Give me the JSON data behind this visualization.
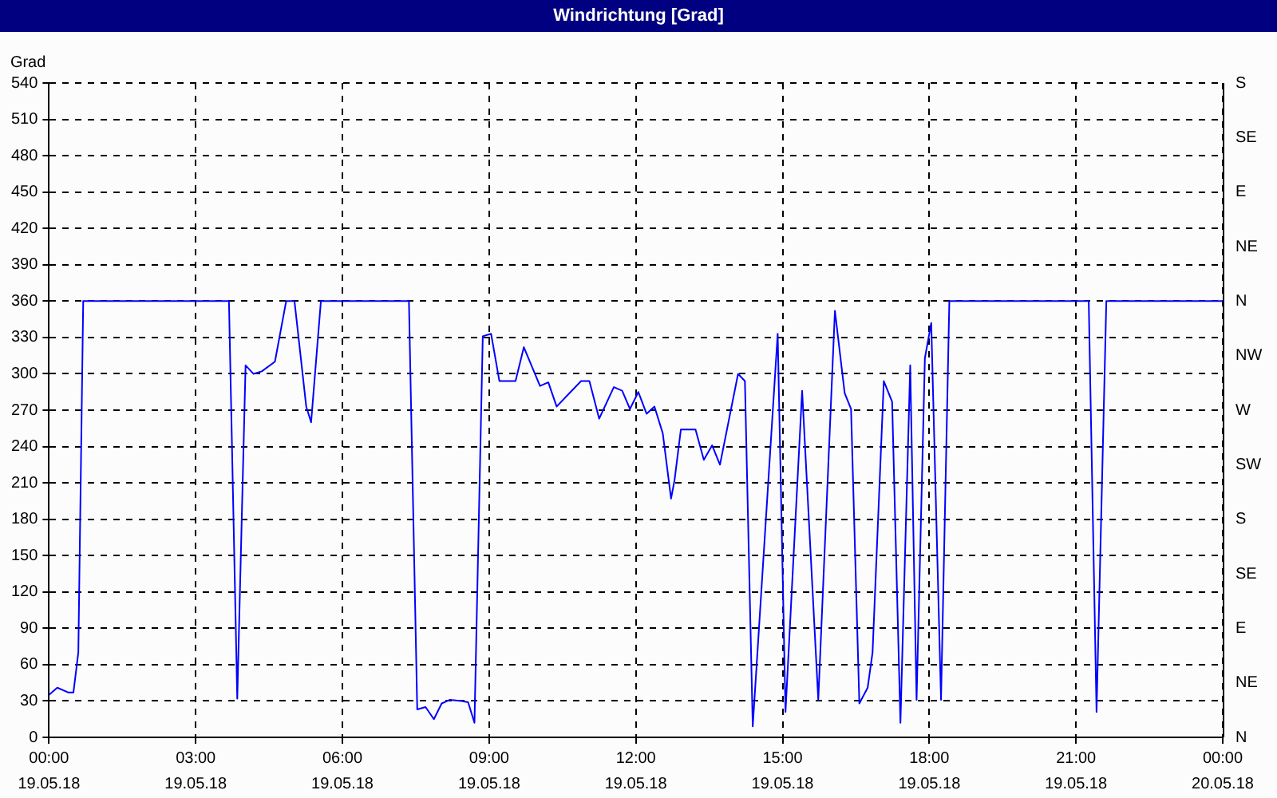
{
  "chart_data": {
    "type": "line",
    "title": "Windrichtung [Grad]",
    "ylabel": "Grad",
    "x": [
      0,
      0.17,
      0.4,
      0.5,
      0.6,
      0.7,
      3.68,
      3.85,
      4.02,
      4.18,
      4.35,
      4.62,
      4.85,
      5.02,
      5.26,
      5.36,
      5.56,
      7.36,
      7.53,
      7.7,
      7.87,
      8.03,
      8.2,
      8.44,
      8.57,
      8.7,
      8.87,
      9.04,
      9.21,
      9.54,
      9.71,
      10.04,
      10.21,
      10.38,
      10.88,
      11.05,
      11.25,
      11.55,
      11.72,
      11.88,
      12.05,
      12.22,
      12.38,
      12.55,
      12.72,
      12.79,
      12.92,
      13.22,
      13.39,
      13.56,
      13.72,
      14.09,
      14.23,
      14.39,
      14.9,
      15.06,
      15.4,
      15.73,
      16.07,
      16.27,
      16.4,
      16.57,
      16.74,
      16.84,
      17.07,
      17.24,
      17.41,
      17.61,
      17.74,
      17.91,
      18.04,
      18.24,
      18.41,
      21.26,
      21.42,
      21.62,
      24
    ],
    "series": [
      {
        "color": "#0000ff",
        "values": [
          35,
          41,
          37,
          37,
          70,
          360,
          360,
          32,
          307,
          300,
          302,
          310,
          360,
          360,
          273,
          260,
          360,
          360,
          23,
          25,
          15,
          28,
          31,
          30,
          29,
          12,
          331,
          333,
          294,
          294,
          322,
          290,
          293,
          273,
          294,
          294,
          263,
          289,
          286,
          271,
          285,
          267,
          273,
          251,
          197,
          212,
          254,
          254,
          229,
          241,
          225,
          300,
          294,
          9,
          333,
          21,
          286,
          31,
          352,
          284,
          271,
          28,
          41,
          70,
          294,
          277,
          12,
          307,
          31,
          313,
          342,
          31,
          360,
          360,
          21,
          360,
          360
        ]
      }
    ],
    "xlim": [
      0,
      24
    ],
    "xticks": [
      {
        "value": 0,
        "label": "00:00"
      },
      {
        "value": 3,
        "label": "03:00"
      },
      {
        "value": 6,
        "label": "06:00"
      },
      {
        "value": 9,
        "label": "09:00"
      },
      {
        "value": 12,
        "label": "12:00"
      },
      {
        "value": 15,
        "label": "15:00"
      },
      {
        "value": 18,
        "label": "18:00"
      },
      {
        "value": 21,
        "label": "21:00"
      },
      {
        "value": 24,
        "label": "00:00"
      }
    ],
    "annotations": [
      "19.05.18",
      "19.05.18",
      "19.05.18",
      "19.05.18",
      "19.05.18",
      "19.05.18",
      "19.05.18",
      "19.05.18",
      "20.05.18",
      "N",
      "NE",
      "E",
      "SE",
      "S",
      "SW",
      "W",
      "NW",
      "N",
      "NE",
      "E",
      "SE",
      "S"
    ],
    "ylim": [
      0,
      540
    ],
    "yticks": [
      0,
      30,
      60,
      90,
      120,
      150,
      180,
      210,
      240,
      270,
      300,
      330,
      360,
      390,
      420,
      450,
      480,
      510,
      540
    ],
    "grid": true,
    "legend": false,
    "marker": "none",
    "line_style": "solid"
  }
}
